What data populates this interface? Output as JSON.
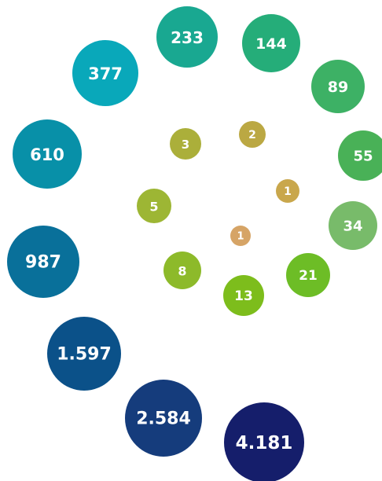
{
  "nodes": [
    {
      "label": "1",
      "color": "#d6a466"
    },
    {
      "label": "1",
      "color": "#c9a74c"
    },
    {
      "label": "2",
      "color": "#bba843"
    },
    {
      "label": "3",
      "color": "#abaf3a"
    },
    {
      "label": "5",
      "color": "#9db634"
    },
    {
      "label": "8",
      "color": "#8dba2a"
    },
    {
      "label": "13",
      "color": "#7dbd1c"
    },
    {
      "label": "21",
      "color": "#6dbd26"
    },
    {
      "label": "34",
      "color": "#78bb6a"
    },
    {
      "label": "55",
      "color": "#49b157"
    },
    {
      "label": "89",
      "color": "#3db165"
    },
    {
      "label": "144",
      "color": "#25ad79"
    },
    {
      "label": "233",
      "color": "#19a891"
    },
    {
      "label": "377",
      "color": "#09a8ba"
    },
    {
      "label": "610",
      "color": "#0890a8"
    },
    {
      "label": "987",
      "color": "#09709a"
    },
    {
      "label": "1.597",
      "color": "#0b5189"
    },
    {
      "label": "2.584",
      "color": "#153c7c"
    },
    {
      "label": "4.181",
      "color": "#151e6b"
    }
  ]
}
